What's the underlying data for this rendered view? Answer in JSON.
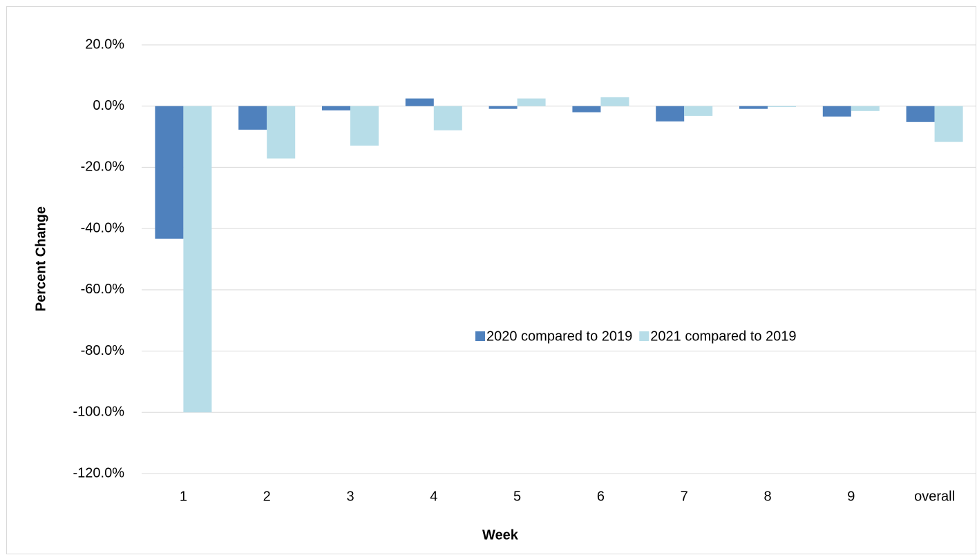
{
  "chart_data": {
    "type": "bar",
    "x_label": "Week",
    "y_label": "Percent Change",
    "categories": [
      "1",
      "2",
      "3",
      "4",
      "5",
      "6",
      "7",
      "8",
      "9",
      "overall"
    ],
    "series": [
      {
        "name": "2020 compared to 2019",
        "color": "#4f81bd",
        "values": [
          -43.3,
          -7.7,
          -1.4,
          2.5,
          -0.9,
          -2.0,
          -5.0,
          -0.9,
          -3.4,
          -5.2
        ]
      },
      {
        "name": "2021 compared to 2019",
        "color": "#b7dde8",
        "values": [
          -100,
          -17.1,
          -12.9,
          -7.9,
          2.5,
          2.9,
          -3.2,
          -0.3,
          -1.6,
          -11.7
        ]
      }
    ],
    "ylim": [
      -120,
      20
    ],
    "yticks": [
      {
        "value": -120,
        "label": "-120.0%"
      },
      {
        "value": -100,
        "label": "-100.0%"
      },
      {
        "value": -80,
        "label": "-80.0%"
      },
      {
        "value": -60,
        "label": "-60.0%"
      },
      {
        "value": -40,
        "label": "-40.0%"
      },
      {
        "value": -20,
        "label": "-20.0%"
      },
      {
        "value": 0,
        "label": "0.0%"
      },
      {
        "value": 20,
        "label": "20.0%"
      }
    ],
    "grid": true
  }
}
